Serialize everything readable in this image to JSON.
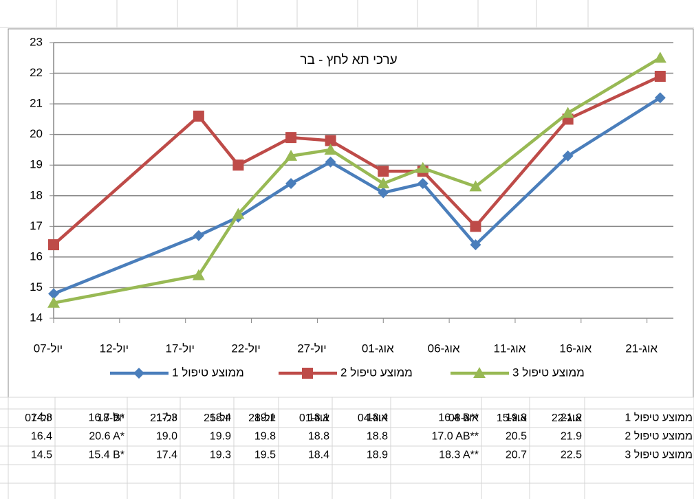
{
  "chart_data": {
    "type": "line",
    "title": "ערכי תא לחץ - בר",
    "x": [
      "07-07",
      "07-18",
      "07-21",
      "07-25",
      "07-28",
      "08-01",
      "08-04",
      "08-08",
      "08-15",
      "08-22"
    ],
    "series": [
      {
        "name": "ממוצע טיפול 1",
        "color": "#4a7ebb",
        "marker": "diamond",
        "values": [
          14.8,
          16.7,
          17.3,
          18.4,
          19.1,
          18.1,
          18.4,
          16.4,
          19.3,
          21.2
        ]
      },
      {
        "name": "ממוצע טיפול 2",
        "color": "#be4b48",
        "marker": "square",
        "values": [
          16.4,
          20.6,
          19.0,
          19.9,
          19.8,
          18.8,
          18.8,
          17.0,
          20.5,
          21.9
        ]
      },
      {
        "name": "ממוצע טיפול 3",
        "color": "#98b954",
        "marker": "triangle",
        "values": [
          14.5,
          15.4,
          17.4,
          19.3,
          19.5,
          18.4,
          18.9,
          18.3,
          20.7,
          22.5
        ]
      }
    ],
    "xlim": [
      "07-07",
      "08-23"
    ],
    "xticks": [
      {
        "value": "07-07",
        "label": "07-יול"
      },
      {
        "value": "07-12",
        "label": "12-יול"
      },
      {
        "value": "07-17",
        "label": "17-יול"
      },
      {
        "value": "07-22",
        "label": "22-יול"
      },
      {
        "value": "07-27",
        "label": "27-יול"
      },
      {
        "value": "08-01",
        "label": "01-אוג"
      },
      {
        "value": "08-06",
        "label": "06-אוג"
      },
      {
        "value": "08-11",
        "label": "11-אוג"
      },
      {
        "value": "08-16",
        "label": "16-אוג"
      },
      {
        "value": "08-21",
        "label": "21-אוג"
      }
    ],
    "ylim": [
      14,
      23
    ],
    "yticks": [
      14,
      15,
      16,
      17,
      18,
      19,
      20,
      21,
      22,
      23
    ],
    "grid": true,
    "legend": "bottom"
  },
  "table": {
    "header": [
      "07-יול",
      "18-יול",
      "21-יול",
      "25-יול",
      "28-יול",
      "01-אוג",
      "04-אוג",
      "08-אוג",
      "15-אוג",
      "22-אוג"
    ],
    "rows": [
      {
        "label": "ממוצע טיפול 1",
        "cells": [
          "14.8",
          "16.7 B*",
          "17.3",
          "18.4",
          "19.1",
          "18.1",
          "18.4",
          "16.4 B**",
          "19.3",
          "21.2"
        ]
      },
      {
        "label": "ממוצע טיפול 2",
        "cells": [
          "16.4",
          "20.6 A*",
          "19.0",
          "19.9",
          "19.8",
          "18.8",
          "18.8",
          "17.0 AB**",
          "20.5",
          "21.9"
        ]
      },
      {
        "label": "ממוצע טיפול 3",
        "cells": [
          "14.5",
          "15.4 B*",
          "17.4",
          "19.3",
          "19.5",
          "18.4",
          "18.9",
          "18.3 A**",
          "20.7",
          "22.5"
        ]
      }
    ]
  }
}
